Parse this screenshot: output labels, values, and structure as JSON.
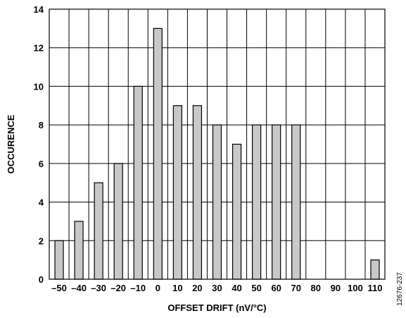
{
  "chart_data": {
    "type": "bar",
    "categories": [
      "–50",
      "–40",
      "–30",
      "–20",
      "–10",
      "0",
      "10",
      "20",
      "30",
      "40",
      "50",
      "60",
      "70",
      "80",
      "90",
      "100",
      "110"
    ],
    "values": [
      2,
      3,
      5,
      6,
      10,
      13,
      9,
      9,
      8,
      7,
      8,
      8,
      8,
      0,
      0,
      0,
      1
    ],
    "xlabel": "OFFSET DRIFT (nV/°C)",
    "ylabel": "OCCURENCE",
    "ylim": [
      0,
      14
    ],
    "yticks": [
      0,
      2,
      4,
      6,
      8,
      10,
      12,
      14
    ],
    "grid": true,
    "bar_color": "#c8c8c8",
    "edge_color": "#000000",
    "figure_id": "12676-237"
  }
}
